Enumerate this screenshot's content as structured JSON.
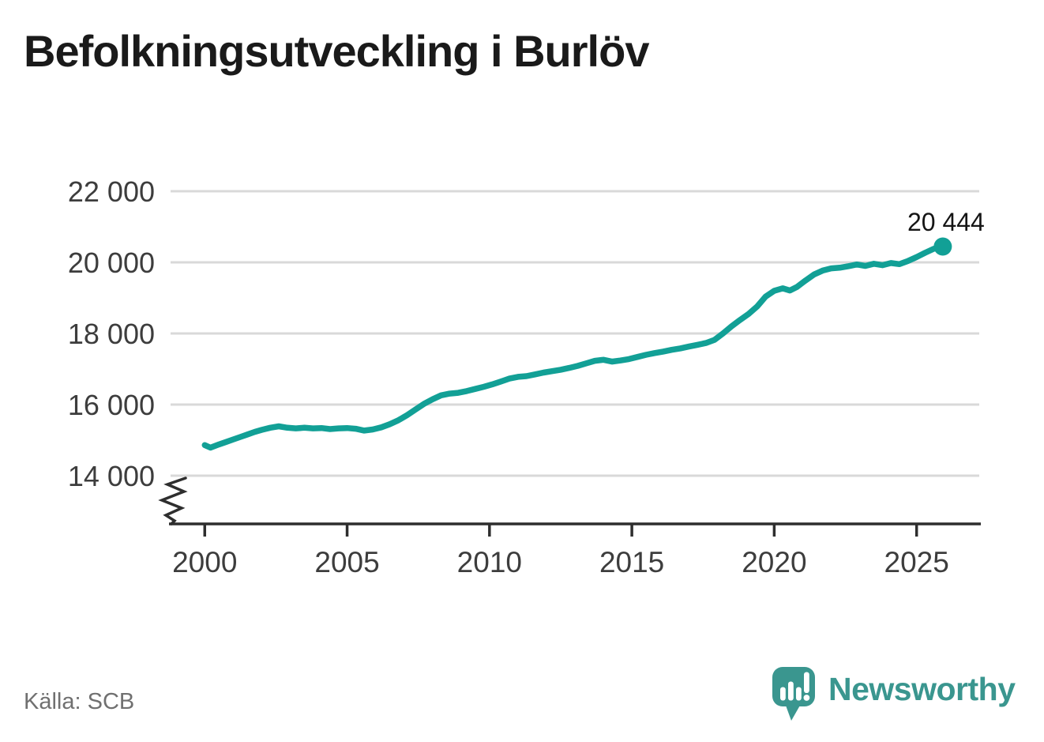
{
  "title": "Befolkningsutveckling i Burlöv",
  "source": "Källa: SCB",
  "branding": {
    "name": "Newsworthy"
  },
  "colors": {
    "background": "#ffffff",
    "line": "#12a096",
    "logo": "#3a968f",
    "grid": "#d9d9d9",
    "axis": "#2e2e2e",
    "tick_label": "#3d3d3d",
    "title_text": "#1a1a1a",
    "source_text": "#707070",
    "end_label_text": "#151515"
  },
  "chart_data": {
    "type": "line",
    "title": "Befolkningsutveckling i Burlöv",
    "xlabel": "",
    "ylabel": "",
    "grid": "horizontal",
    "legend": "none",
    "axis_break_below_y_min": true,
    "xlim": [
      1998.8,
      2027.2
    ],
    "ylim": [
      14000,
      22000
    ],
    "x_ticks": [
      {
        "value": 2000,
        "label": "2000"
      },
      {
        "value": 2005,
        "label": "2005"
      },
      {
        "value": 2010,
        "label": "2010"
      },
      {
        "value": 2015,
        "label": "2015"
      },
      {
        "value": 2020,
        "label": "2020"
      },
      {
        "value": 2025,
        "label": "2025"
      }
    ],
    "y_ticks": [
      {
        "value": 14000,
        "label": "14 000"
      },
      {
        "value": 16000,
        "label": "16 000"
      },
      {
        "value": 18000,
        "label": "18 000"
      },
      {
        "value": 20000,
        "label": "20 000"
      },
      {
        "value": 22000,
        "label": "22 000"
      }
    ],
    "end_point": {
      "x": 2025.92,
      "y": 20444,
      "label": "20 444"
    },
    "series": [
      {
        "name": "Befolkning",
        "points": [
          [
            2000.0,
            14860
          ],
          [
            2000.2,
            14790
          ],
          [
            2000.5,
            14880
          ],
          [
            2000.75,
            14950
          ],
          [
            2001.0,
            15020
          ],
          [
            2001.25,
            15090
          ],
          [
            2001.5,
            15160
          ],
          [
            2001.75,
            15230
          ],
          [
            2002.0,
            15290
          ],
          [
            2002.3,
            15350
          ],
          [
            2002.6,
            15390
          ],
          [
            2002.9,
            15350
          ],
          [
            2003.2,
            15330
          ],
          [
            2003.5,
            15350
          ],
          [
            2003.8,
            15330
          ],
          [
            2004.1,
            15340
          ],
          [
            2004.4,
            15310
          ],
          [
            2004.7,
            15330
          ],
          [
            2005.0,
            15340
          ],
          [
            2005.3,
            15320
          ],
          [
            2005.6,
            15270
          ],
          [
            2005.9,
            15300
          ],
          [
            2006.2,
            15360
          ],
          [
            2006.5,
            15450
          ],
          [
            2006.8,
            15560
          ],
          [
            2007.1,
            15700
          ],
          [
            2007.4,
            15860
          ],
          [
            2007.7,
            16020
          ],
          [
            2008.0,
            16150
          ],
          [
            2008.3,
            16260
          ],
          [
            2008.6,
            16310
          ],
          [
            2008.9,
            16330
          ],
          [
            2009.2,
            16380
          ],
          [
            2009.5,
            16440
          ],
          [
            2009.8,
            16500
          ],
          [
            2010.1,
            16570
          ],
          [
            2010.4,
            16650
          ],
          [
            2010.7,
            16730
          ],
          [
            2011.0,
            16780
          ],
          [
            2011.3,
            16800
          ],
          [
            2011.6,
            16850
          ],
          [
            2011.9,
            16900
          ],
          [
            2012.2,
            16940
          ],
          [
            2012.5,
            16980
          ],
          [
            2012.8,
            17030
          ],
          [
            2013.1,
            17090
          ],
          [
            2013.4,
            17160
          ],
          [
            2013.7,
            17230
          ],
          [
            2014.0,
            17260
          ],
          [
            2014.3,
            17210
          ],
          [
            2014.6,
            17240
          ],
          [
            2014.9,
            17280
          ],
          [
            2015.2,
            17340
          ],
          [
            2015.5,
            17400
          ],
          [
            2015.8,
            17450
          ],
          [
            2016.1,
            17490
          ],
          [
            2016.4,
            17540
          ],
          [
            2016.7,
            17580
          ],
          [
            2017.0,
            17630
          ],
          [
            2017.3,
            17680
          ],
          [
            2017.6,
            17730
          ],
          [
            2017.9,
            17820
          ],
          [
            2018.2,
            18000
          ],
          [
            2018.5,
            18200
          ],
          [
            2018.8,
            18380
          ],
          [
            2019.1,
            18550
          ],
          [
            2019.4,
            18760
          ],
          [
            2019.7,
            19040
          ],
          [
            2020.0,
            19200
          ],
          [
            2020.3,
            19270
          ],
          [
            2020.55,
            19210
          ],
          [
            2020.8,
            19310
          ],
          [
            2021.1,
            19490
          ],
          [
            2021.4,
            19660
          ],
          [
            2021.7,
            19770
          ],
          [
            2022.0,
            19830
          ],
          [
            2022.3,
            19850
          ],
          [
            2022.6,
            19890
          ],
          [
            2022.9,
            19940
          ],
          [
            2023.2,
            19900
          ],
          [
            2023.5,
            19960
          ],
          [
            2023.8,
            19920
          ],
          [
            2024.1,
            19980
          ],
          [
            2024.4,
            19950
          ],
          [
            2024.7,
            20040
          ],
          [
            2025.0,
            20150
          ],
          [
            2025.3,
            20270
          ],
          [
            2025.6,
            20380
          ],
          [
            2025.92,
            20444
          ]
        ]
      }
    ]
  }
}
